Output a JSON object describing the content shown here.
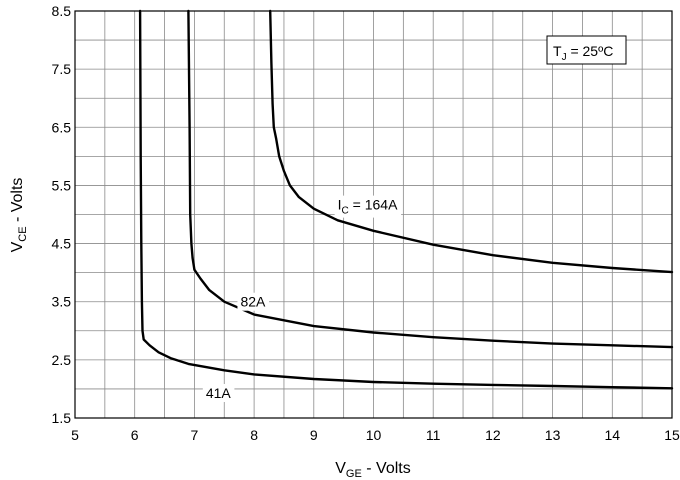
{
  "chart_data": {
    "type": "line",
    "xlabel": {
      "main": "V",
      "sub": "GE",
      "rest": " - Volts"
    },
    "ylabel": {
      "main": "V",
      "sub": "CE",
      "rest": " - Volts"
    },
    "xlim": [
      5,
      15
    ],
    "ylim": [
      1.5,
      8.5
    ],
    "x_major_ticks": [
      5,
      6,
      7,
      8,
      9,
      10,
      11,
      12,
      13,
      14,
      15
    ],
    "y_major_ticks": [
      1.5,
      2.5,
      3.5,
      4.5,
      5.5,
      6.5,
      7.5,
      8.5
    ],
    "x_tick_labels": [
      "5",
      "6",
      "7",
      "8",
      "9",
      "10",
      "11",
      "12",
      "13",
      "14",
      "15"
    ],
    "y_tick_labels": [
      "1.5",
      "2.5",
      "3.5",
      "4.5",
      "5.5",
      "6.5",
      "7.5",
      "8.5"
    ],
    "x_minor_step": 0.5,
    "y_minor_step": 0.5,
    "grid": true,
    "annotation_box": {
      "main": "T",
      "sub": "J",
      "rest": " = 25ºC"
    },
    "series": [
      {
        "label": {
          "main": "I",
          "sub": "C",
          "rest": " = 164A"
        },
        "label_at": {
          "x": 9.9,
          "y": 5.17
        },
        "x": [
          8.27,
          8.29,
          8.31,
          8.33,
          8.37,
          8.42,
          8.5,
          8.6,
          8.75,
          9.0,
          9.4,
          10.0,
          11.0,
          12.0,
          13.0,
          14.0,
          15.0
        ],
        "y": [
          8.5,
          7.6,
          6.9,
          6.5,
          6.3,
          6.0,
          5.75,
          5.5,
          5.3,
          5.1,
          4.9,
          4.72,
          4.48,
          4.3,
          4.17,
          4.08,
          4.01
        ]
      },
      {
        "label": {
          "main": "",
          "sub": "",
          "rest": "82A"
        },
        "label_at": {
          "x": 7.98,
          "y": 3.5
        },
        "x": [
          6.9,
          6.92,
          6.93,
          6.95,
          6.97,
          7.0,
          7.1,
          7.25,
          7.5,
          8.0,
          9.0,
          10.0,
          11.0,
          12.0,
          13.0,
          14.0,
          15.0
        ],
        "y": [
          8.5,
          6.5,
          5.0,
          4.5,
          4.25,
          4.05,
          3.9,
          3.7,
          3.5,
          3.28,
          3.08,
          2.97,
          2.89,
          2.83,
          2.78,
          2.75,
          2.72
        ]
      },
      {
        "label": {
          "main": "",
          "sub": "",
          "rest": "41A"
        },
        "label_at": {
          "x": 7.4,
          "y": 1.93
        },
        "x": [
          6.09,
          6.1,
          6.11,
          6.12,
          6.13,
          6.15,
          6.25,
          6.4,
          6.6,
          6.9,
          7.5,
          8.0,
          9.0,
          10.0,
          11.0,
          12.0,
          13.0,
          14.0,
          15.0
        ],
        "y": [
          8.5,
          6.0,
          4.5,
          3.5,
          3.0,
          2.85,
          2.75,
          2.63,
          2.53,
          2.43,
          2.32,
          2.25,
          2.17,
          2.12,
          2.09,
          2.07,
          2.05,
          2.03,
          2.01
        ]
      }
    ]
  }
}
